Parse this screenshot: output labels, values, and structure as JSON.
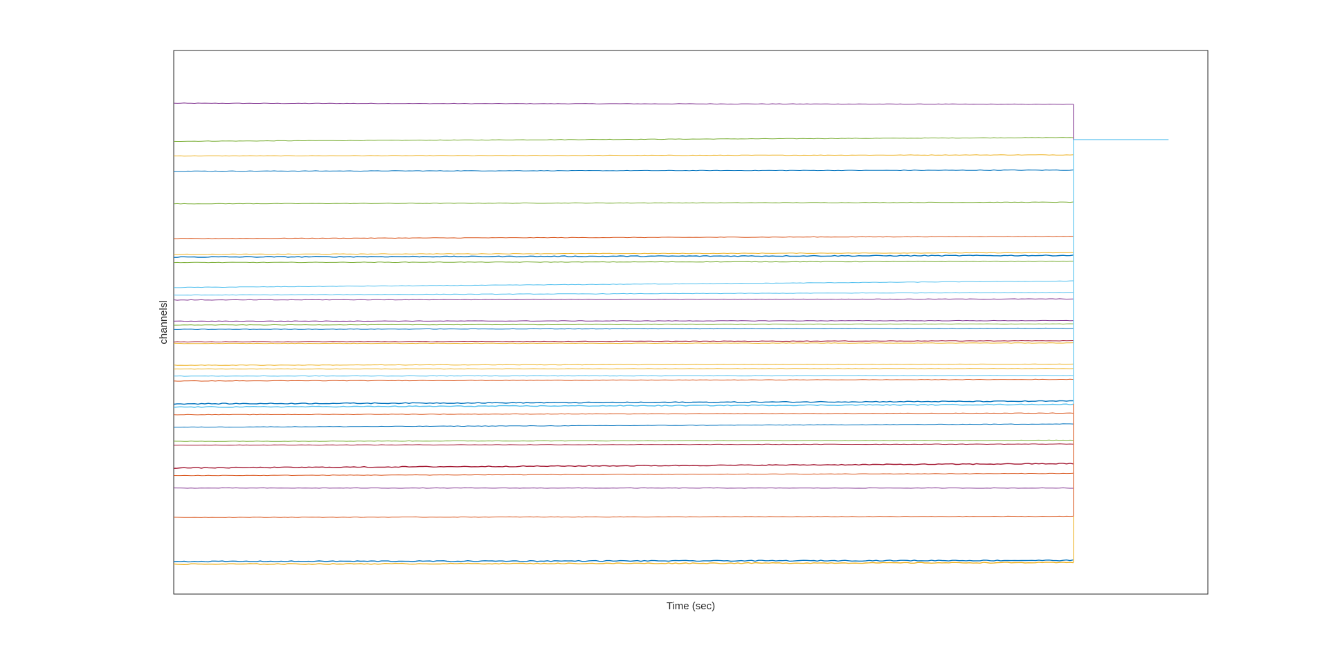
{
  "chart_data": {
    "type": "line",
    "title": "",
    "xlabel": "Time (sec)",
    "ylabel": "channelsl",
    "xlim": [
      0,
      1000
    ],
    "ylim": [
      0,
      1000
    ],
    "grid": false,
    "legend": "none",
    "x_end_main": 870,
    "x_end_extra": 962,
    "series": [
      {
        "color": "#7E2F8E",
        "y_start": 903,
        "y_end": 901
      },
      {
        "color": "#77AC30",
        "y_start": 833,
        "y_end": 840
      },
      {
        "color": "#EDB120",
        "y_start": 806,
        "y_end": 808
      },
      {
        "color": "#0072BD",
        "y_start": 778,
        "y_end": 780
      },
      {
        "color": "#77AC30",
        "y_start": 718,
        "y_end": 721
      },
      {
        "color": "#D95319",
        "y_start": 654,
        "y_end": 658
      },
      {
        "color": "#EDB120",
        "y_start": 625,
        "y_end": 628
      },
      {
        "color": "#0072BD",
        "y_start": 620,
        "y_end": 623,
        "noisy": true
      },
      {
        "color": "#77AC30",
        "y_start": 610,
        "y_end": 612
      },
      {
        "color": "#4DBEEE",
        "y_start": 564,
        "y_end": 576
      },
      {
        "color": "#4DBEEE",
        "y_start": 550,
        "y_end": 555
      },
      {
        "color": "#7E2F8E",
        "y_start": 541,
        "y_end": 543
      },
      {
        "color": "#7E2F8E",
        "y_start": 502,
        "y_end": 503
      },
      {
        "color": "#77AC30",
        "y_start": 495,
        "y_end": 497
      },
      {
        "color": "#0072BD",
        "y_start": 487,
        "y_end": 489
      },
      {
        "color": "#A2142F",
        "y_start": 464,
        "y_end": 466
      },
      {
        "color": "#EDB120",
        "y_start": 461,
        "y_end": 462
      },
      {
        "color": "#EDB120",
        "y_start": 421,
        "y_end": 423
      },
      {
        "color": "#EDB120",
        "y_start": 414,
        "y_end": 415
      },
      {
        "color": "#4DBEEE",
        "y_start": 401,
        "y_end": 402
      },
      {
        "color": "#D95319",
        "y_start": 392,
        "y_end": 395
      },
      {
        "color": "#0072BD",
        "y_start": 350,
        "y_end": 355,
        "noisy": true
      },
      {
        "color": "#4DBEEE",
        "y_start": 344,
        "y_end": 349,
        "noisy": true
      },
      {
        "color": "#D95319",
        "y_start": 330,
        "y_end": 333
      },
      {
        "color": "#0072BD",
        "y_start": 307,
        "y_end": 313
      },
      {
        "color": "#77AC30",
        "y_start": 281,
        "y_end": 283
      },
      {
        "color": "#A2142F",
        "y_start": 274,
        "y_end": 276
      },
      {
        "color": "#A2142F",
        "y_start": 232,
        "y_end": 240,
        "noisy": true
      },
      {
        "color": "#D95319",
        "y_start": 218,
        "y_end": 222
      },
      {
        "color": "#7E2F8E",
        "y_start": 195,
        "y_end": 195
      },
      {
        "color": "#D95319",
        "y_start": 141,
        "y_end": 143
      },
      {
        "color": "#0072BD",
        "y_start": 60,
        "y_end": 62,
        "noisy": true
      },
      {
        "color": "#EDB120",
        "y_start": 55,
        "y_end": 58,
        "noisy": true
      }
    ],
    "connector_lines": [
      {
        "color": "#7E2F8E",
        "y_from": 901,
        "y_to": 836
      },
      {
        "color": "#4DBEEE",
        "y_from": 836,
        "y_to": 350
      },
      {
        "color": "#D95319",
        "y_from": 350,
        "y_to": 143
      },
      {
        "color": "#EDB120",
        "y_from": 143,
        "y_to": 58
      }
    ],
    "extra_segment": {
      "color": "#4DBEEE",
      "y": 836
    }
  }
}
